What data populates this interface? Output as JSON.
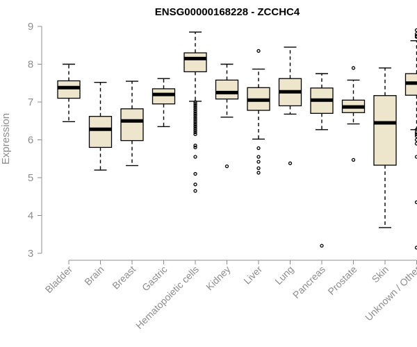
{
  "chart_data": {
    "type": "boxplot",
    "title": "ENSG00000168228 - ZCCHC4",
    "ylabel": "Expression",
    "ylim": [
      3,
      9
    ],
    "yticks": [
      3,
      4,
      5,
      6,
      7,
      8,
      9
    ],
    "box_color": "#ede6cc",
    "categories": [
      "Bladder",
      "Brain",
      "Breast",
      "Gastric",
      "Hematopoietic cells",
      "Kidney",
      "Liver",
      "Lung",
      "Pancreas",
      "Prostate",
      "Skin",
      "Unknown / Other"
    ],
    "boxes": [
      {
        "category": "Bladder",
        "whisker_low": 6.48,
        "q1": 7.1,
        "median": 7.38,
        "q3": 7.56,
        "whisker_high": 8.0,
        "outliers": []
      },
      {
        "category": "Brain",
        "whisker_low": 5.2,
        "q1": 5.8,
        "median": 6.28,
        "q3": 6.62,
        "whisker_high": 7.52,
        "outliers": []
      },
      {
        "category": "Breast",
        "whisker_low": 5.32,
        "q1": 5.98,
        "median": 6.5,
        "q3": 6.82,
        "whisker_high": 7.55,
        "outliers": []
      },
      {
        "category": "Gastric",
        "whisker_low": 6.35,
        "q1": 6.95,
        "median": 7.2,
        "q3": 7.35,
        "whisker_high": 7.62,
        "outliers": []
      },
      {
        "category": "Hematopoietic cells",
        "whisker_low": 7.02,
        "q1": 7.8,
        "median": 8.15,
        "q3": 8.3,
        "whisker_high": 8.85,
        "outliers": [
          7.0,
          6.95,
          6.9,
          6.85,
          6.8,
          6.75,
          6.7,
          6.65,
          6.6,
          6.55,
          6.5,
          6.45,
          6.4,
          6.35,
          6.3,
          6.25,
          6.2,
          6.15,
          5.85,
          5.8,
          5.55,
          5.1,
          4.82,
          4.65
        ]
      },
      {
        "category": "Kidney",
        "whisker_low": 6.6,
        "q1": 7.08,
        "median": 7.25,
        "q3": 7.58,
        "whisker_high": 8.0,
        "outliers": [
          5.3
        ]
      },
      {
        "category": "Liver",
        "whisker_low": 6.02,
        "q1": 6.78,
        "median": 7.05,
        "q3": 7.38,
        "whisker_high": 7.87,
        "outliers": [
          8.35,
          5.78,
          5.55,
          5.42,
          5.25,
          5.13
        ]
      },
      {
        "category": "Lung",
        "whisker_low": 6.68,
        "q1": 6.9,
        "median": 7.27,
        "q3": 7.62,
        "whisker_high": 8.45,
        "outliers": [
          5.38
        ]
      },
      {
        "category": "Pancreas",
        "whisker_low": 6.27,
        "q1": 6.7,
        "median": 7.05,
        "q3": 7.37,
        "whisker_high": 7.75,
        "outliers": [
          3.2
        ]
      },
      {
        "category": "Prostate",
        "whisker_low": 6.42,
        "q1": 6.72,
        "median": 6.87,
        "q3": 7.05,
        "whisker_high": 7.58,
        "outliers": [
          7.9,
          5.47
        ]
      },
      {
        "category": "Skin",
        "whisker_low": 3.68,
        "q1": 5.33,
        "median": 6.45,
        "q3": 7.17,
        "whisker_high": 7.9,
        "outliers": []
      },
      {
        "category": "Unknown / Other",
        "whisker_low": 6.27,
        "q1": 7.18,
        "median": 7.5,
        "q3": 7.75,
        "whisker_high": 8.62,
        "outliers": [
          8.9,
          8.8,
          8.75,
          8.72,
          6.27,
          6.2,
          6.15,
          6.1,
          6.0,
          5.9,
          5.55,
          4.35,
          3.15
        ]
      }
    ]
  }
}
